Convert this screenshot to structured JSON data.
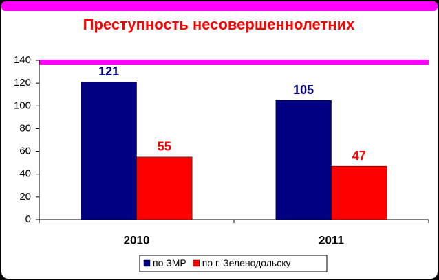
{
  "chart_data": {
    "type": "bar",
    "title": "Преступность несовершеннолетних",
    "categories": [
      "2010",
      "2011"
    ],
    "series": [
      {
        "name": "по ЗМР",
        "color": "#000080",
        "values": [
          121,
          105
        ]
      },
      {
        "name": "по г. Зеленодольску",
        "color": "#ff0000",
        "values": [
          55,
          47
        ]
      }
    ],
    "ylim": [
      0,
      140
    ],
    "yticks": [
      0,
      20,
      40,
      60,
      80,
      100,
      120,
      140
    ],
    "grid": false,
    "legend": "bottom"
  }
}
